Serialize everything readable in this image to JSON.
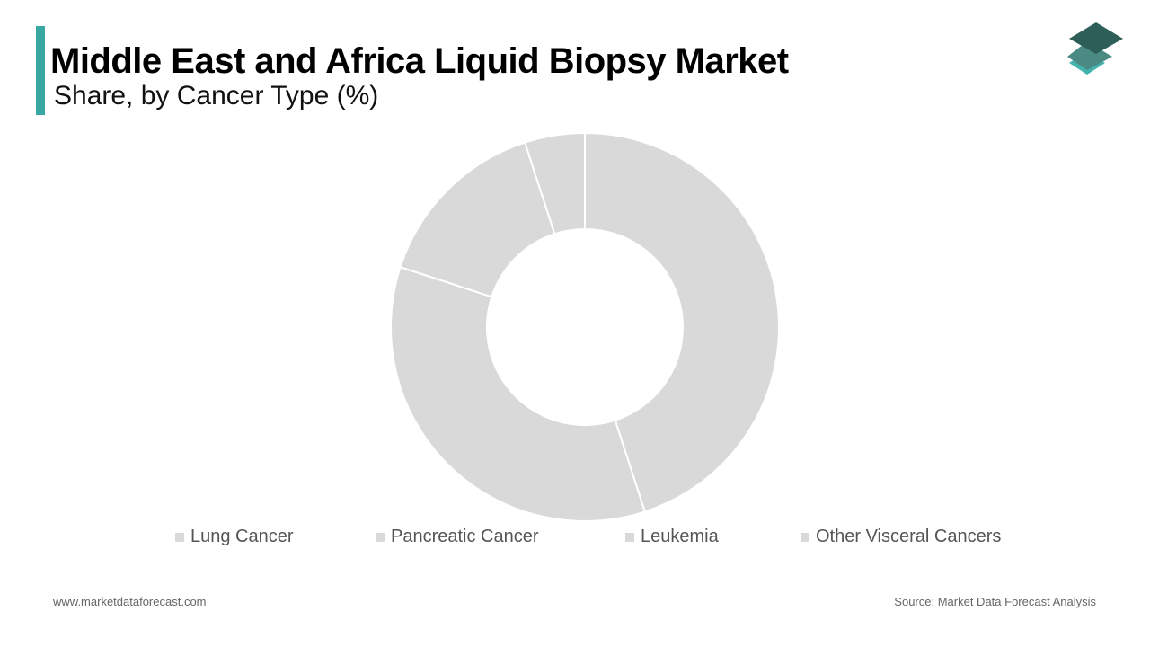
{
  "header": {
    "title": "Middle East and Africa Liquid Biopsy Market",
    "subtitle": "Share, by Cancer Type (%)"
  },
  "colors": {
    "accent": "#3aa8a2",
    "slice_fill": "#d9d9d9",
    "logo_dark": "#2e5e58",
    "logo_mid": "#4b8a83",
    "logo_light": "#43b3ad"
  },
  "chart_data": {
    "type": "pie",
    "variant": "donut",
    "title": "Middle East and Africa Liquid Biopsy Market",
    "subtitle": "Share, by Cancer Type (%)",
    "legend_position": "bottom",
    "categories": [
      "Lung Cancer",
      "Pancreatic Cancer",
      "Leukemia",
      "Other Visceral Cancers"
    ],
    "values": [
      45,
      35,
      15,
      5
    ],
    "legend": [
      "Lung Cancer",
      "Pancreatic Cancer",
      "Leukemia",
      "Other Visceral Cancers"
    ]
  },
  "footer": {
    "website": "www.marketdataforecast.com",
    "source": "Source: Market Data Forecast Analysis"
  },
  "logo": {
    "icon": "stacked-layers-icon"
  }
}
